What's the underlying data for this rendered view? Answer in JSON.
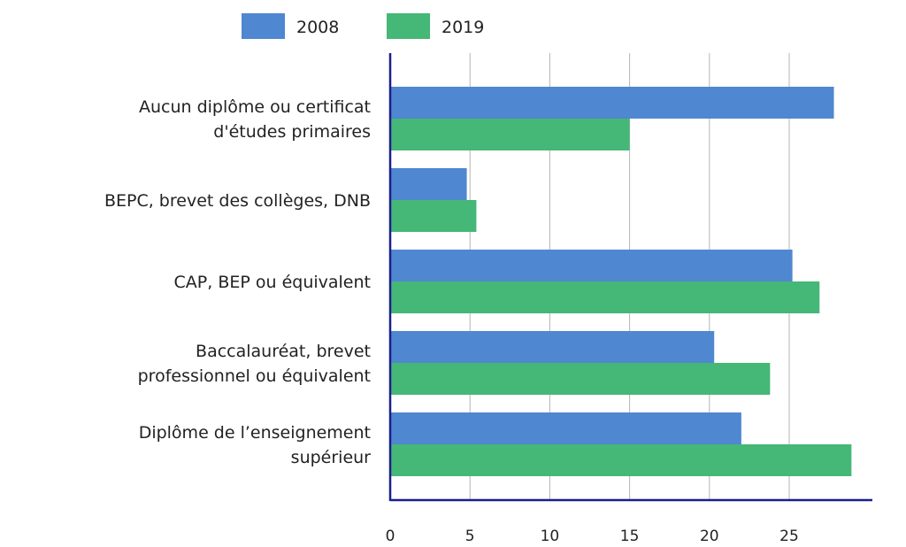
{
  "chart_data": {
    "type": "bar",
    "orientation": "horizontal",
    "title": "",
    "xlabel": "",
    "ylabel": "",
    "categories": [
      [
        "Aucun diplôme ou certificat",
        "d'études primaires"
      ],
      [
        "BEPC, brevet des collèges, DNB"
      ],
      [
        "CAP, BEP ou équivalent"
      ],
      [
        "Baccalauréat, brevet",
        "professionnel ou équivalent"
      ],
      [
        "Diplôme de l’enseignement",
        "supérieur"
      ]
    ],
    "series": [
      {
        "name": "2008",
        "color": "#4f87d0",
        "values": [
          27.8,
          4.8,
          25.2,
          20.3,
          22.0
        ]
      },
      {
        "name": "2019",
        "color": "#45b777",
        "values": [
          15.0,
          5.4,
          26.9,
          23.8,
          28.9
        ]
      }
    ],
    "xlim": [
      0,
      30
    ],
    "xticks": [
      "0",
      "5",
      "10",
      "15",
      "20",
      "25"
    ],
    "grid": true,
    "legend_position": "top"
  }
}
